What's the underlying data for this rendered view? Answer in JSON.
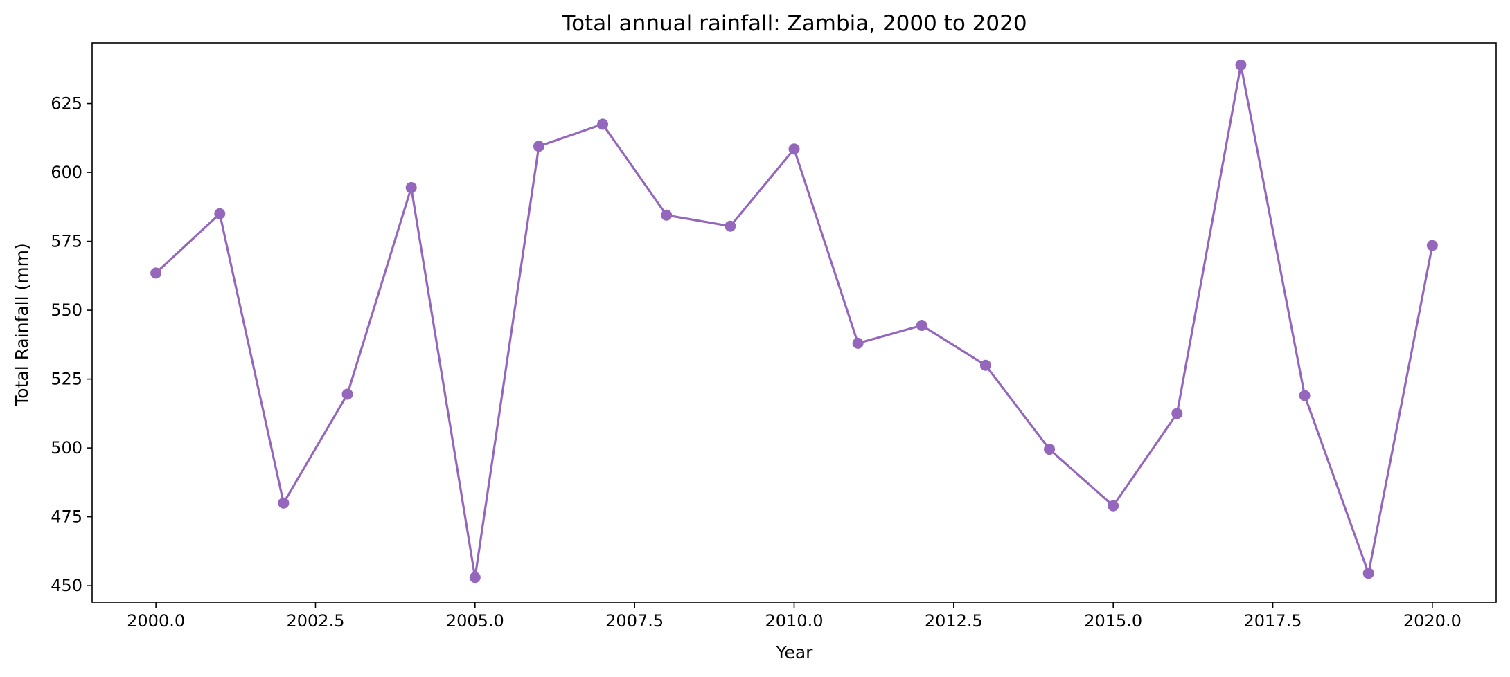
{
  "chart_data": {
    "type": "line",
    "title": "Total annual rainfall: Zambia, 2000 to 2020",
    "xlabel": "Year",
    "ylabel": "Total Rainfall (mm)",
    "xlim": [
      1999.0,
      2021.0
    ],
    "ylim": [
      444,
      647
    ],
    "xticks": [
      2000.0,
      2002.5,
      2005.0,
      2007.5,
      2010.0,
      2012.5,
      2015.0,
      2017.5,
      2020.0
    ],
    "xtick_labels": [
      "2000.0",
      "2002.5",
      "2005.0",
      "2007.5",
      "2010.0",
      "2012.5",
      "2015.0",
      "2017.5",
      "2020.0"
    ],
    "yticks": [
      450,
      475,
      500,
      525,
      550,
      575,
      600,
      625
    ],
    "ytick_labels": [
      "450",
      "475",
      "500",
      "525",
      "550",
      "575",
      "600",
      "625"
    ],
    "grid": false,
    "legend": "none",
    "color": "#9467bd",
    "series": [
      {
        "x": [
          2000,
          2001,
          2002,
          2003,
          2004,
          2005,
          2006,
          2007,
          2008,
          2009,
          2010,
          2011,
          2012,
          2013,
          2014,
          2015,
          2016,
          2017,
          2018,
          2019,
          2020
        ],
        "values": [
          563.5,
          585.0,
          480.0,
          519.5,
          594.5,
          453.0,
          609.5,
          617.5,
          584.5,
          580.5,
          608.5,
          538.0,
          544.5,
          530.0,
          499.5,
          479.0,
          512.5,
          639.0,
          519.0,
          454.5,
          573.5
        ]
      }
    ]
  }
}
